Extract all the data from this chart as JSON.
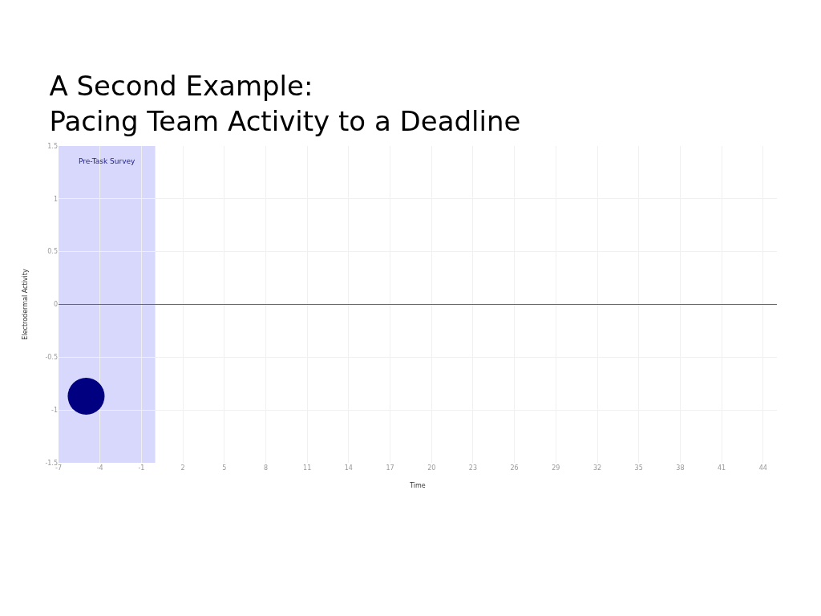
{
  "chart_data": {
    "type": "bubble",
    "title": "A Second Example:\nPacing Team Activity to a Deadline",
    "xlabel": "Time",
    "ylabel": "Electrodermal Activity",
    "x": [
      -5
    ],
    "series": [
      {
        "color": "#000080",
        "values": [
          -0.87
        ],
        "sizes": [
          1
        ]
      }
    ],
    "xlim": [
      -7,
      45
    ],
    "xticks": [
      -7,
      -4,
      -1,
      2,
      5,
      8,
      11,
      14,
      17,
      20,
      23,
      26,
      29,
      32,
      35,
      38,
      41,
      44
    ],
    "ylim": [
      -1.5,
      1.5
    ],
    "yticks": [
      -1.5,
      -1,
      -0.5,
      0,
      0.5,
      1,
      1.5
    ],
    "ref_lines": [
      {
        "axis": "y",
        "value": 0,
        "color": "#e8283c"
      }
    ],
    "bands": [
      {
        "axis": "x",
        "from": -7,
        "to": 0,
        "label": "Pre-Task Survey",
        "color": "#d8d8fc"
      }
    ],
    "grid": true,
    "legend": false
  }
}
